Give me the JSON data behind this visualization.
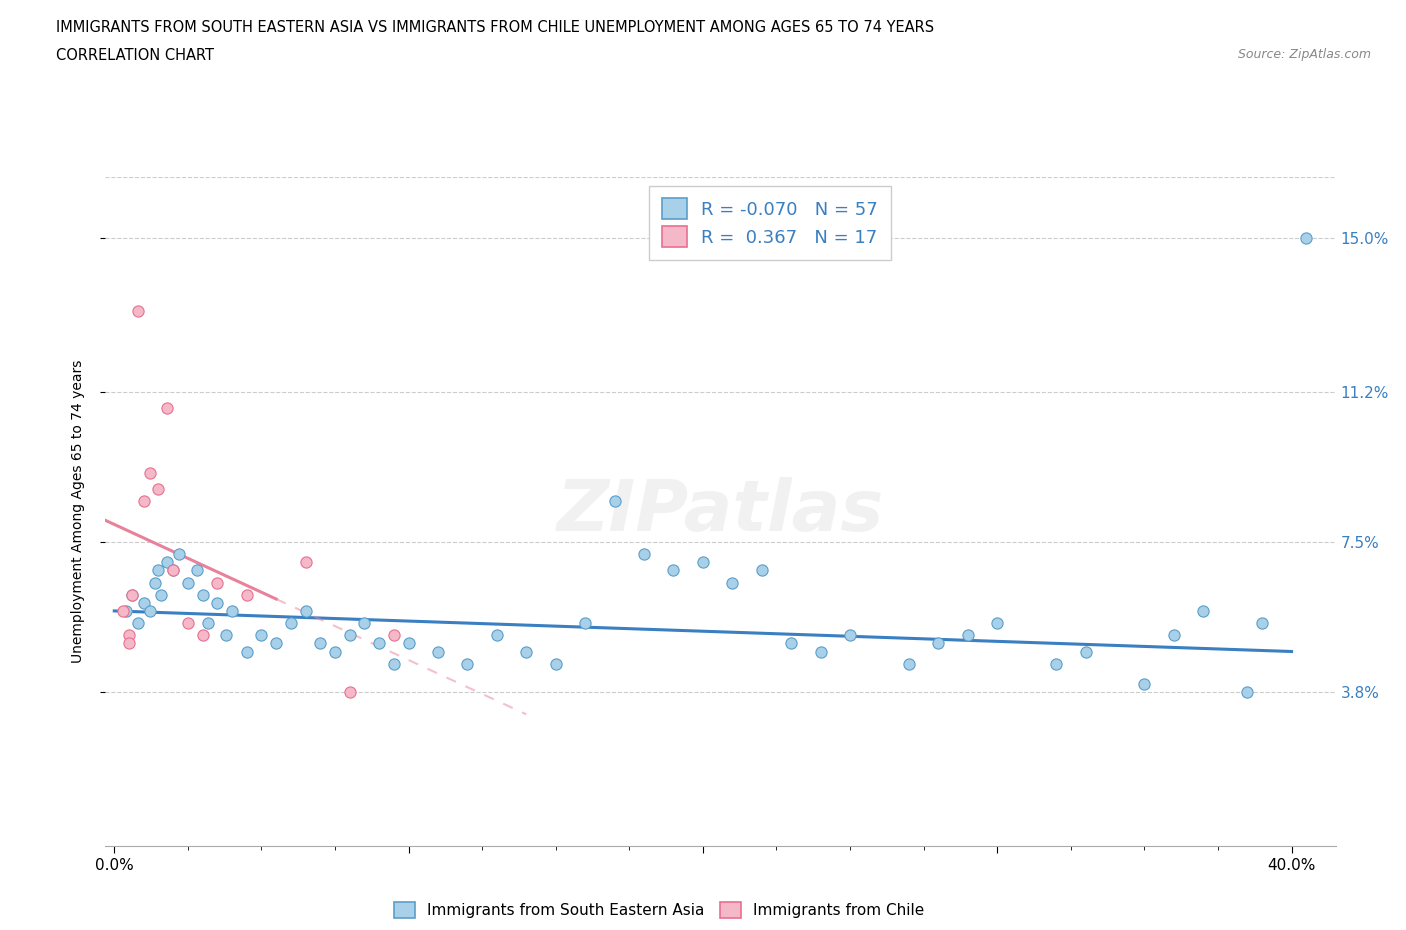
{
  "title_line1": "IMMIGRANTS FROM SOUTH EASTERN ASIA VS IMMIGRANTS FROM CHILE UNEMPLOYMENT AMONG AGES 65 TO 74 YEARS",
  "title_line2": "CORRELATION CHART",
  "source_text": "Source: ZipAtlas.com",
  "ylabel": "Unemployment Among Ages 65 to 74 years",
  "xmin": 0.0,
  "xmax": 40.0,
  "ymin": 0.0,
  "ymax": 16.5,
  "ytick_vals": [
    3.8,
    7.5,
    11.2,
    15.0
  ],
  "ytick_labels": [
    "3.8%",
    "7.5%",
    "11.2%",
    "15.0%"
  ],
  "xtick_vals": [
    0.0,
    10.0,
    20.0,
    30.0,
    40.0
  ],
  "xtick_labels": [
    "0.0%",
    "",
    "",
    "",
    "40.0%"
  ],
  "blue_color": "#A8D0E8",
  "pink_color": "#F5B8C8",
  "blue_edge": "#5B9EC9",
  "pink_edge": "#E87090",
  "blue_line_color": "#3A7FC1",
  "pink_line_color": "#E8829A",
  "watermark": "ZIPatlas",
  "legend_R_blue": "-0.070",
  "legend_N_blue": "57",
  "legend_R_pink": "0.367",
  "legend_N_pink": "17",
  "legend_label_blue": "Immigrants from South Eastern Asia",
  "legend_label_pink": "Immigrants from Chile",
  "blue_x": [
    0.4,
    0.6,
    0.8,
    1.0,
    1.2,
    1.4,
    1.5,
    1.6,
    1.8,
    2.0,
    2.2,
    2.5,
    2.8,
    3.0,
    3.2,
    3.5,
    3.8,
    4.0,
    4.5,
    5.0,
    5.5,
    6.0,
    6.5,
    7.0,
    7.5,
    8.0,
    8.5,
    9.0,
    9.5,
    10.0,
    11.0,
    12.0,
    13.0,
    14.0,
    15.0,
    16.0,
    17.0,
    18.0,
    19.0,
    20.0,
    21.0,
    22.0,
    23.0,
    24.0,
    25.0,
    27.0,
    28.0,
    29.0,
    30.0,
    32.0,
    33.0,
    35.0,
    36.0,
    37.0,
    38.5,
    39.0,
    40.5
  ],
  "blue_y": [
    5.8,
    6.2,
    5.5,
    6.0,
    5.8,
    6.5,
    6.8,
    6.2,
    7.0,
    6.8,
    7.2,
    6.5,
    6.8,
    6.2,
    5.5,
    6.0,
    5.2,
    5.8,
    4.8,
    5.2,
    5.0,
    5.5,
    5.8,
    5.0,
    4.8,
    5.2,
    5.5,
    5.0,
    4.5,
    5.0,
    4.8,
    4.5,
    5.2,
    4.8,
    4.5,
    5.5,
    8.5,
    7.2,
    6.8,
    7.0,
    6.5,
    6.8,
    5.0,
    4.8,
    5.2,
    4.5,
    5.0,
    5.2,
    5.5,
    4.5,
    4.8,
    4.0,
    5.2,
    5.8,
    3.8,
    5.5,
    15.0
  ],
  "pink_x": [
    0.3,
    0.5,
    0.6,
    0.8,
    1.0,
    1.2,
    1.5,
    1.8,
    2.0,
    2.5,
    3.0,
    3.5,
    4.5,
    6.5,
    8.0,
    9.5,
    0.5
  ],
  "pink_y": [
    5.8,
    5.2,
    6.2,
    13.2,
    8.5,
    9.2,
    8.8,
    10.8,
    6.8,
    5.5,
    5.2,
    6.5,
    6.2,
    7.0,
    3.8,
    5.2,
    5.0
  ]
}
